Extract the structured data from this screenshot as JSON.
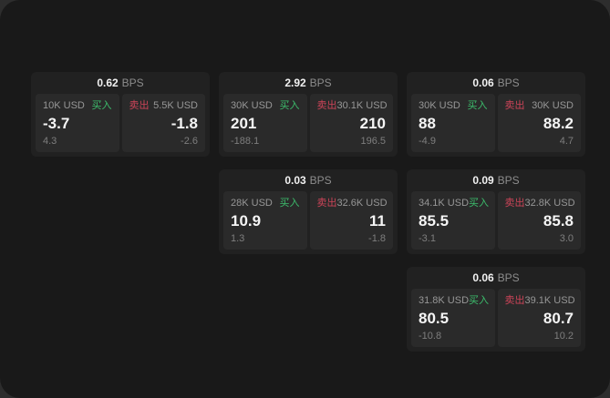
{
  "page": {
    "outer_background": "#2d2d2d",
    "panel_background": "#191919"
  },
  "colors": {
    "buy_green": "#3cbd6c",
    "sell_red": "#cc4458",
    "card_background": "#212121",
    "tile_background": "#2a2a2a",
    "value_white": "#f5f5f5",
    "label_gray": "#979797",
    "sub_gray": "#7e7e7e"
  },
  "bps_unit": "BPS",
  "cards": [
    {
      "bps": "0.62",
      "buy": {
        "amount": "10K USD",
        "label": "买入",
        "value": "-3.7",
        "sub": "4.3"
      },
      "sell": {
        "label": "卖出",
        "amount": "5.5K USD",
        "value": "-1.8",
        "sub": "-2.6"
      }
    },
    {
      "bps": "2.92",
      "buy": {
        "amount": "30K USD",
        "label": "买入",
        "value": "201",
        "sub": "-188.1"
      },
      "sell": {
        "label": "卖出",
        "amount": "30.1K USD",
        "value": "210",
        "sub": "196.5"
      }
    },
    {
      "bps": "0.06",
      "buy": {
        "amount": "30K USD",
        "label": "买入",
        "value": "88",
        "sub": "-4.9"
      },
      "sell": {
        "label": "卖出",
        "amount": "30K USD",
        "value": "88.2",
        "sub": "4.7"
      }
    },
    {
      "bps": "0.03",
      "buy": {
        "amount": "28K USD",
        "label": "买入",
        "value": "10.9",
        "sub": "1.3"
      },
      "sell": {
        "label": "卖出",
        "amount": "32.6K USD",
        "value": "11",
        "sub": "-1.8"
      }
    },
    {
      "bps": "0.09",
      "buy": {
        "amount": "34.1K USD",
        "label": "买入",
        "value": "85.5",
        "sub": "-3.1"
      },
      "sell": {
        "label": "卖出",
        "amount": "32.8K USD",
        "value": "85.8",
        "sub": "3.0"
      }
    },
    {
      "bps": "0.06",
      "buy": {
        "amount": "31.8K USD",
        "label": "买入",
        "value": "80.5",
        "sub": "-10.8"
      },
      "sell": {
        "label": "卖出",
        "amount": "39.1K USD",
        "value": "80.7",
        "sub": "10.2"
      }
    }
  ]
}
